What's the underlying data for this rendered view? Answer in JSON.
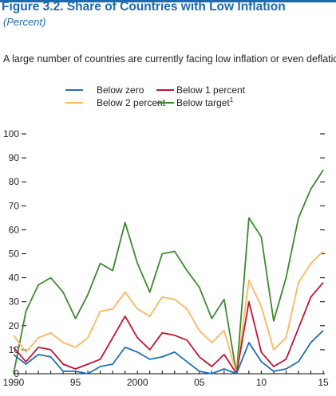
{
  "figure": {
    "title": "Figure 3.2.  Share of Countries with Low Inflation",
    "unit": "(Percent)",
    "subtitle": "A large number of countries are currently facing low inflation or even deflation."
  },
  "chart_data": {
    "type": "line",
    "x": [
      1990,
      1991,
      1992,
      1993,
      1994,
      1995,
      1996,
      1997,
      1998,
      1999,
      2000,
      2001,
      2002,
      2003,
      2004,
      2005,
      2006,
      2007,
      2008,
      2009,
      2010,
      2011,
      2012,
      2013,
      2014,
      2015
    ],
    "x_tick_values": [
      1990,
      1995,
      2000,
      2005,
      2010,
      2015
    ],
    "x_tick_labels": [
      "1990",
      "95",
      "2000",
      "05",
      "10",
      "15"
    ],
    "ylim": [
      0,
      100
    ],
    "y_ticks": [
      0,
      10,
      20,
      30,
      40,
      50,
      60,
      70,
      80,
      90,
      100
    ],
    "grid": false,
    "legend_position": "top-center",
    "series": [
      {
        "name": "Below zero",
        "color": "#1f6fb5",
        "values": [
          8,
          4,
          8,
          7,
          1,
          1,
          0,
          3,
          4,
          11,
          9,
          6,
          7,
          9,
          5,
          1,
          0,
          2,
          0,
          13,
          5,
          1,
          2,
          5,
          13,
          18
        ]
      },
      {
        "name": "Below 1 percent",
        "color": "#c0152f",
        "values": [
          11,
          5,
          11,
          10,
          4,
          2,
          4,
          6,
          15,
          24,
          15,
          10,
          17,
          16,
          14,
          7,
          3,
          8,
          0,
          30,
          9,
          3,
          6,
          19,
          32,
          38
        ]
      },
      {
        "name": "Below 2 percent",
        "color": "#fbb75e",
        "values": [
          16,
          9,
          15,
          17,
          13,
          11,
          15,
          26,
          27,
          34,
          27,
          24,
          32,
          31,
          27,
          18,
          13,
          18,
          0,
          39,
          28,
          10,
          15,
          38,
          46,
          51
        ]
      },
      {
        "name": "Below target",
        "superscript": "1",
        "color": "#3b8a2e",
        "values": [
          0,
          26,
          37,
          40,
          34,
          23,
          33,
          46,
          43,
          63,
          46,
          34,
          50,
          51,
          43,
          36,
          23,
          31,
          0,
          65,
          57,
          22,
          40,
          65,
          77,
          85
        ]
      }
    ]
  }
}
